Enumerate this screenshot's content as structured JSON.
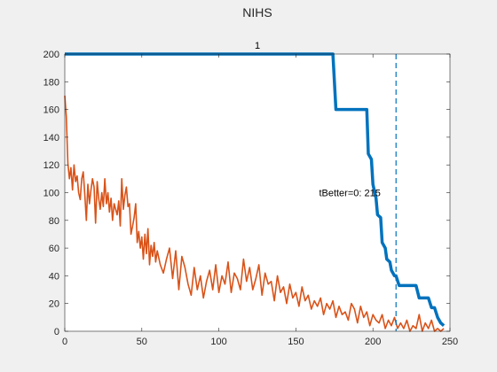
{
  "figure": {
    "title": "NIHS",
    "background": "#f0f0f0",
    "axes_background": "#ffffff"
  },
  "chart_data": {
    "type": "line",
    "subtitle": "1",
    "xlim": [
      0,
      250
    ],
    "ylim": [
      0,
      200
    ],
    "xticks": [
      0,
      50,
      100,
      150,
      200,
      250
    ],
    "yticks": [
      0,
      20,
      40,
      60,
      80,
      100,
      120,
      140,
      160,
      180,
      200
    ],
    "grid": false,
    "annotation": {
      "text": "tBetter=0: 215",
      "x": 165,
      "y": 100
    },
    "vline": {
      "x": 215,
      "style": "dashed",
      "color": "#0072bd"
    },
    "series": [
      {
        "color": "#0072bd",
        "style": "thick",
        "x": [
          0,
          174,
          176,
          196,
          197,
          199,
          200,
          202,
          203,
          205,
          206,
          208,
          209,
          211,
          212,
          214,
          215,
          217,
          228,
          230,
          236,
          238,
          240,
          242,
          244,
          246
        ],
        "y": [
          200,
          200,
          160,
          160,
          128,
          124,
          106,
          96,
          84,
          82,
          64,
          60,
          52,
          50,
          44,
          40,
          40,
          33,
          33,
          24,
          24,
          17,
          17,
          10,
          6,
          4
        ]
      },
      {
        "color": "#d95319",
        "style": "thin",
        "x": [
          0,
          1,
          2,
          3,
          4,
          5,
          6,
          7,
          8,
          9,
          10,
          11,
          12,
          13,
          14,
          15,
          16,
          17,
          18,
          19,
          20,
          21,
          22,
          23,
          24,
          25,
          26,
          27,
          28,
          29,
          30,
          31,
          32,
          33,
          34,
          35,
          36,
          37,
          38,
          39,
          40,
          41,
          42,
          43,
          44,
          45,
          46,
          47,
          48,
          49,
          50,
          51,
          52,
          53,
          54,
          55,
          56,
          57,
          58,
          59,
          60,
          62,
          64,
          66,
          68,
          70,
          72,
          74,
          76,
          78,
          80,
          82,
          84,
          86,
          88,
          90,
          92,
          94,
          96,
          98,
          100,
          102,
          104,
          106,
          108,
          110,
          112,
          114,
          116,
          118,
          120,
          122,
          124,
          126,
          128,
          130,
          132,
          134,
          136,
          138,
          140,
          142,
          144,
          146,
          148,
          150,
          152,
          154,
          156,
          158,
          160,
          162,
          164,
          166,
          168,
          170,
          172,
          174,
          176,
          178,
          180,
          182,
          184,
          186,
          188,
          190,
          192,
          194,
          196,
          198,
          200,
          202,
          204,
          206,
          208,
          210,
          212,
          214,
          216,
          218,
          220,
          222,
          224,
          226,
          228,
          230,
          232,
          234,
          236,
          238,
          240,
          242,
          244,
          246
        ],
        "y": [
          170,
          155,
          121,
          110,
          118,
          102,
          120,
          108,
          112,
          100,
          95,
          110,
          115,
          98,
          80,
          106,
          92,
          102,
          110,
          104,
          78,
          108,
          96,
          88,
          100,
          90,
          110,
          92,
          100,
          86,
          96,
          80,
          92,
          88,
          84,
          94,
          76,
          110,
          88,
          98,
          104,
          90,
          92,
          70,
          76,
          82,
          92,
          64,
          72,
          60,
          68,
          52,
          70,
          56,
          74,
          48,
          62,
          54,
          64,
          50,
          58,
          48,
          42,
          52,
          60,
          38,
          58,
          30,
          54,
          46,
          34,
          26,
          46,
          30,
          40,
          24,
          36,
          44,
          30,
          48,
          28,
          40,
          34,
          50,
          28,
          42,
          38,
          30,
          52,
          36,
          46,
          30,
          38,
          48,
          26,
          42,
          34,
          36,
          22,
          40,
          28,
          32,
          20,
          34,
          24,
          28,
          18,
          32,
          22,
          26,
          16,
          22,
          18,
          24,
          12,
          20,
          16,
          22,
          10,
          18,
          12,
          14,
          8,
          20,
          16,
          6,
          18,
          10,
          14,
          4,
          12,
          8,
          6,
          12,
          2,
          8,
          4,
          10,
          2,
          6,
          2,
          8,
          0,
          4,
          2,
          12,
          0,
          6,
          2,
          8,
          0,
          2,
          0,
          2
        ]
      }
    ]
  }
}
